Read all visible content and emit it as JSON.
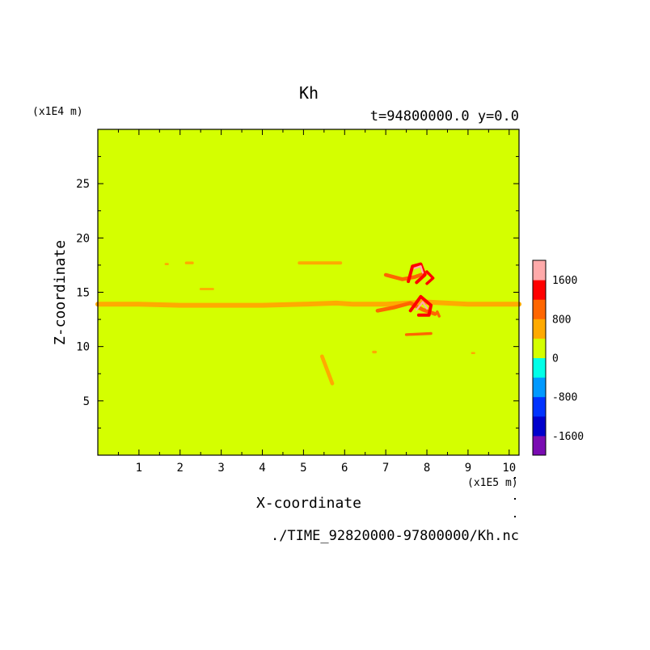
{
  "chart_data": {
    "type": "heatmap",
    "title": "Kh",
    "subtitle": "t=94800000.0 y=0.0",
    "xlabel": "X-coordinate",
    "ylabel": "Z-coordinate",
    "x_scale_label": "(x1E5 m)",
    "y_scale_label": "(x1E4 m)",
    "source_file": "./TIME_92820000-97800000/Kh.nc",
    "xlim": [
      0,
      10.24
    ],
    "ylim": [
      0,
      30
    ],
    "x_ticks": [
      1,
      2,
      3,
      4,
      5,
      6,
      7,
      8,
      9,
      10
    ],
    "y_ticks": [
      5,
      10,
      15,
      20,
      25
    ],
    "background_value": 0,
    "background_color": "#d4ff00",
    "colorbar": {
      "levels": [
        -2000,
        -1600,
        -1200,
        -800,
        -400,
        0,
        400,
        800,
        1200,
        1600,
        2000
      ],
      "colors": [
        "#7a0cb2",
        "#0000cc",
        "#0033ff",
        "#0099ff",
        "#00ffe8",
        "#d4ff00",
        "#ffaa00",
        "#ff6600",
        "#ff0000",
        "#ffaaaa"
      ],
      "labels": [
        {
          "value": 1600,
          "text": "1600"
        },
        {
          "value": 800,
          "text": "800"
        },
        {
          "value": 0,
          "text": "0"
        },
        {
          "value": -800,
          "text": "-800"
        },
        {
          "value": -1600,
          "text": "-1600"
        }
      ]
    },
    "features": [
      {
        "name": "main-layer",
        "value": 600,
        "points": [
          [
            0.0,
            13.9
          ],
          [
            1.0,
            13.9
          ],
          [
            2.0,
            13.8
          ],
          [
            3.0,
            13.8
          ],
          [
            4.0,
            13.8
          ],
          [
            5.0,
            13.9
          ],
          [
            5.8,
            14.0
          ],
          [
            6.2,
            13.9
          ],
          [
            7.0,
            13.9
          ],
          [
            8.0,
            14.1
          ],
          [
            9.0,
            13.9
          ],
          [
            10.24,
            13.9
          ]
        ],
        "thickness": 0.45
      },
      {
        "name": "layer-17-7",
        "value": 700,
        "points": [
          [
            4.9,
            17.7
          ],
          [
            5.9,
            17.7
          ]
        ],
        "thickness": 0.3
      },
      {
        "name": "layer-15-3",
        "value": 600,
        "points": [
          [
            2.5,
            15.3
          ],
          [
            2.8,
            15.3
          ]
        ],
        "thickness": 0.2
      },
      {
        "name": "blip-17-6-a",
        "value": 600,
        "points": [
          [
            1.65,
            17.6
          ],
          [
            1.7,
            17.6
          ]
        ],
        "thickness": 0.2
      },
      {
        "name": "blip-17-6-b",
        "value": 700,
        "points": [
          [
            2.15,
            17.7
          ],
          [
            2.3,
            17.7
          ]
        ],
        "thickness": 0.25
      },
      {
        "name": "streak-7-9",
        "value": 700,
        "points": [
          [
            5.45,
            9.1
          ],
          [
            5.7,
            6.6
          ]
        ],
        "thickness": 0.35
      },
      {
        "name": "wake-lower",
        "value": 1100,
        "points": [
          [
            7.5,
            11.1
          ],
          [
            8.1,
            11.2
          ]
        ],
        "thickness": 0.25
      },
      {
        "name": "lower-band",
        "value": 1000,
        "points": [
          [
            6.8,
            13.3
          ],
          [
            7.2,
            13.6
          ],
          [
            7.6,
            14.0
          ],
          [
            7.9,
            13.4
          ],
          [
            8.2,
            13.0
          ]
        ],
        "thickness": 0.35
      },
      {
        "name": "upper-band",
        "value": 1100,
        "points": [
          [
            7.0,
            16.6
          ],
          [
            7.4,
            16.2
          ],
          [
            7.7,
            16.4
          ],
          [
            8.0,
            16.8
          ]
        ],
        "thickness": 0.35
      },
      {
        "name": "vortex-upper-red",
        "value": 1300,
        "points": [
          [
            7.55,
            16.0
          ],
          [
            7.65,
            17.4
          ],
          [
            7.85,
            17.6
          ],
          [
            7.95,
            16.6
          ],
          [
            7.75,
            15.9
          ]
        ],
        "thickness": 0.3
      },
      {
        "name": "vortex-upper-pink",
        "value": 1800,
        "points": [
          [
            7.7,
            17.2
          ],
          [
            7.85,
            17.4
          ],
          [
            7.9,
            16.8
          ]
        ],
        "thickness": 0.18
      },
      {
        "name": "vortex-right-red",
        "value": 1200,
        "points": [
          [
            8.0,
            16.9
          ],
          [
            8.15,
            16.3
          ],
          [
            8.0,
            15.8
          ]
        ],
        "thickness": 0.25
      },
      {
        "name": "vortex-lower-red",
        "value": 1300,
        "points": [
          [
            7.6,
            13.3
          ],
          [
            7.85,
            14.6
          ],
          [
            8.1,
            13.8
          ],
          [
            8.05,
            12.9
          ],
          [
            7.8,
            12.9
          ]
        ],
        "thickness": 0.3
      },
      {
        "name": "vortex-lower-pink",
        "value": 1800,
        "points": [
          [
            7.75,
            13.4
          ],
          [
            7.9,
            14.1
          ],
          [
            8.0,
            13.5
          ]
        ],
        "thickness": 0.18
      },
      {
        "name": "vortex-lower-orange",
        "value": 900,
        "points": [
          [
            8.25,
            13.2
          ],
          [
            8.3,
            12.8
          ]
        ],
        "thickness": 0.25
      },
      {
        "name": "blip-9-5",
        "value": 600,
        "points": [
          [
            6.7,
            9.5
          ],
          [
            6.75,
            9.5
          ]
        ],
        "thickness": 0.25
      },
      {
        "name": "blip-9-4",
        "value": 500,
        "points": [
          [
            9.1,
            9.4
          ],
          [
            9.15,
            9.4
          ]
        ],
        "thickness": 0.2
      }
    ]
  }
}
